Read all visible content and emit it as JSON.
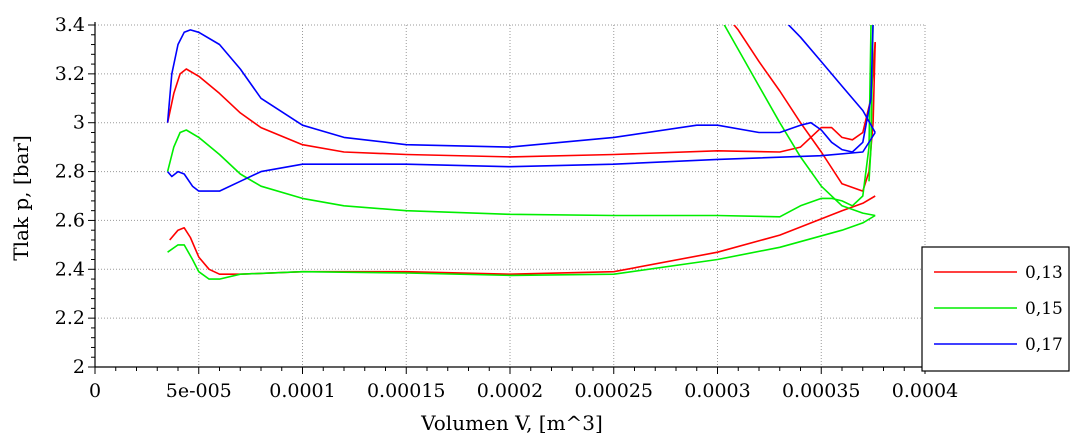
{
  "chart_data": {
    "type": "line",
    "title": "",
    "xlabel": "Volumen V, [m^3]",
    "ylabel": "Tlak p, [bar]",
    "xlim": [
      0,
      0.0004
    ],
    "ylim": [
      2,
      3.4
    ],
    "x_ticks": [
      0,
      5e-05,
      0.0001,
      0.00015,
      0.0002,
      0.00025,
      0.0003,
      0.00035,
      0.0004
    ],
    "x_tick_labels": [
      "0",
      "5e-005",
      "0.0001",
      "0.00015",
      "0.0002",
      "0.00025",
      "0.0003",
      "0.00035",
      "0.0004"
    ],
    "y_ticks": [
      2,
      2.2,
      2.4,
      2.6,
      2.8,
      3,
      3.2,
      3.4
    ],
    "y_tick_labels": [
      "2",
      "2.2",
      "2.4",
      "2.6",
      "2.8",
      "3",
      "3.2",
      "3.4"
    ],
    "grid": true,
    "legend_position": "right",
    "series": [
      {
        "name": "0,13",
        "color": "#ff0000",
        "paths": [
          [
            [
              3.5e-05,
              3.0
            ],
            [
              3.8e-05,
              3.12
            ],
            [
              4.1e-05,
              3.2
            ],
            [
              4.4e-05,
              3.22
            ],
            [
              5e-05,
              3.19
            ],
            [
              6e-05,
              3.12
            ],
            [
              7e-05,
              3.04
            ],
            [
              8e-05,
              2.98
            ],
            [
              0.0001,
              2.91
            ],
            [
              0.00012,
              2.88
            ],
            [
              0.00015,
              2.87
            ],
            [
              0.0002,
              2.86
            ],
            [
              0.00025,
              2.87
            ],
            [
              0.0003,
              2.885
            ],
            [
              0.00033,
              2.88
            ],
            [
              0.00034,
              2.9
            ],
            [
              0.00035,
              2.98
            ],
            [
              0.000355,
              2.98
            ],
            [
              0.00036,
              2.94
            ],
            [
              0.000365,
              2.93
            ],
            [
              0.00037,
              2.96
            ],
            [
              0.000374,
              3.1
            ],
            [
              0.000376,
              3.33
            ]
          ],
          [
            [
              0.000376,
              3.33
            ],
            [
              0.000375,
              3.0
            ],
            [
              0.000373,
              2.8
            ],
            [
              0.00037,
              2.72
            ],
            [
              0.00036,
              2.75
            ],
            [
              0.00035,
              2.88
            ],
            [
              0.00034,
              3.0
            ],
            [
              0.00033,
              3.13
            ],
            [
              0.00032,
              3.25
            ],
            [
              0.00031,
              3.38
            ],
            [
              0.000306,
              3.42
            ]
          ],
          [
            [
              3.6e-05,
              2.52
            ],
            [
              4e-05,
              2.56
            ],
            [
              4.3e-05,
              2.57
            ],
            [
              4.6e-05,
              2.53
            ],
            [
              5e-05,
              2.45
            ],
            [
              5.5e-05,
              2.4
            ],
            [
              6e-05,
              2.38
            ],
            [
              7e-05,
              2.38
            ],
            [
              0.0001,
              2.39
            ],
            [
              0.00015,
              2.39
            ],
            [
              0.0002,
              2.38
            ],
            [
              0.00025,
              2.39
            ],
            [
              0.0003,
              2.47
            ],
            [
              0.00033,
              2.54
            ],
            [
              0.00036,
              2.64
            ],
            [
              0.00037,
              2.67
            ],
            [
              0.000376,
              2.7
            ]
          ]
        ]
      },
      {
        "name": "0,15",
        "color": "#00ee00",
        "paths": [
          [
            [
              3.5e-05,
              2.8
            ],
            [
              3.8e-05,
              2.9
            ],
            [
              4.1e-05,
              2.96
            ],
            [
              4.4e-05,
              2.97
            ],
            [
              5e-05,
              2.94
            ],
            [
              6e-05,
              2.87
            ],
            [
              7e-05,
              2.79
            ],
            [
              8e-05,
              2.74
            ],
            [
              0.0001,
              2.69
            ],
            [
              0.00012,
              2.66
            ],
            [
              0.00015,
              2.64
            ],
            [
              0.0002,
              2.625
            ],
            [
              0.00025,
              2.62
            ],
            [
              0.0003,
              2.62
            ],
            [
              0.00033,
              2.615
            ],
            [
              0.00034,
              2.66
            ],
            [
              0.00035,
              2.69
            ],
            [
              0.000355,
              2.69
            ],
            [
              0.00036,
              2.68
            ],
            [
              0.000365,
              2.66
            ],
            [
              0.00037,
              2.7
            ],
            [
              0.000373,
              2.9
            ],
            [
              0.000374,
              3.4
            ]
          ],
          [
            [
              0.000376,
              2.62
            ],
            [
              0.00037,
              2.63
            ],
            [
              0.00036,
              2.66
            ],
            [
              0.00035,
              2.74
            ],
            [
              0.00034,
              2.86
            ],
            [
              0.00033,
              3.0
            ],
            [
              0.00032,
              3.15
            ],
            [
              0.00031,
              3.3
            ],
            [
              0.000302,
              3.42
            ]
          ],
          [
            [
              0.000373,
              2.76
            ],
            [
              0.000374,
              2.9
            ],
            [
              0.000375,
              3.42
            ]
          ],
          [
            [
              3.5e-05,
              2.47
            ],
            [
              4e-05,
              2.5
            ],
            [
              4.3e-05,
              2.5
            ],
            [
              4.7e-05,
              2.44
            ],
            [
              5e-05,
              2.39
            ],
            [
              5.5e-05,
              2.36
            ],
            [
              6e-05,
              2.36
            ],
            [
              7e-05,
              2.38
            ],
            [
              0.0001,
              2.39
            ],
            [
              0.00015,
              2.385
            ],
            [
              0.0002,
              2.375
            ],
            [
              0.00025,
              2.38
            ],
            [
              0.0003,
              2.44
            ],
            [
              0.00033,
              2.49
            ],
            [
              0.00036,
              2.56
            ],
            [
              0.00037,
              2.59
            ],
            [
              0.000376,
              2.62
            ]
          ]
        ]
      },
      {
        "name": "0,17",
        "color": "#0000ff",
        "paths": [
          [
            [
              3.5e-05,
              3.0
            ],
            [
              3.7e-05,
              3.2
            ],
            [
              4e-05,
              3.32
            ],
            [
              4.3e-05,
              3.37
            ],
            [
              4.6e-05,
              3.38
            ],
            [
              5e-05,
              3.37
            ],
            [
              6e-05,
              3.32
            ],
            [
              7e-05,
              3.22
            ],
            [
              8e-05,
              3.1
            ],
            [
              0.0001,
              2.99
            ],
            [
              0.00012,
              2.94
            ],
            [
              0.00015,
              2.91
            ],
            [
              0.0002,
              2.9
            ],
            [
              0.00025,
              2.94
            ],
            [
              0.00029,
              2.99
            ],
            [
              0.0003,
              2.99
            ],
            [
              0.00032,
              2.96
            ],
            [
              0.00033,
              2.96
            ],
            [
              0.00034,
              2.99
            ],
            [
              0.000345,
              3.0
            ],
            [
              0.00035,
              2.97
            ],
            [
              0.000355,
              2.92
            ],
            [
              0.00036,
              2.89
            ],
            [
              0.000365,
              2.88
            ],
            [
              0.00037,
              2.92
            ],
            [
              0.000374,
              3.1
            ],
            [
              0.000375,
              3.42
            ]
          ],
          [
            [
              3.5e-05,
              2.8
            ],
            [
              3.7e-05,
              2.78
            ],
            [
              4e-05,
              2.8
            ],
            [
              4.3e-05,
              2.79
            ],
            [
              4.7e-05,
              2.74
            ],
            [
              5e-05,
              2.72
            ],
            [
              6e-05,
              2.72
            ],
            [
              7e-05,
              2.76
            ],
            [
              8e-05,
              2.8
            ],
            [
              0.0001,
              2.83
            ],
            [
              0.00015,
              2.83
            ],
            [
              0.0002,
              2.82
            ],
            [
              0.00025,
              2.83
            ],
            [
              0.0003,
              2.85
            ],
            [
              0.00035,
              2.865
            ],
            [
              0.00037,
              2.88
            ],
            [
              0.000376,
              2.96
            ]
          ],
          [
            [
              0.000376,
              2.96
            ],
            [
              0.00037,
              3.05
            ],
            [
              0.00036,
              3.15
            ],
            [
              0.00035,
              3.25
            ],
            [
              0.00034,
              3.35
            ],
            [
              0.000332,
              3.42
            ]
          ]
        ]
      }
    ]
  }
}
